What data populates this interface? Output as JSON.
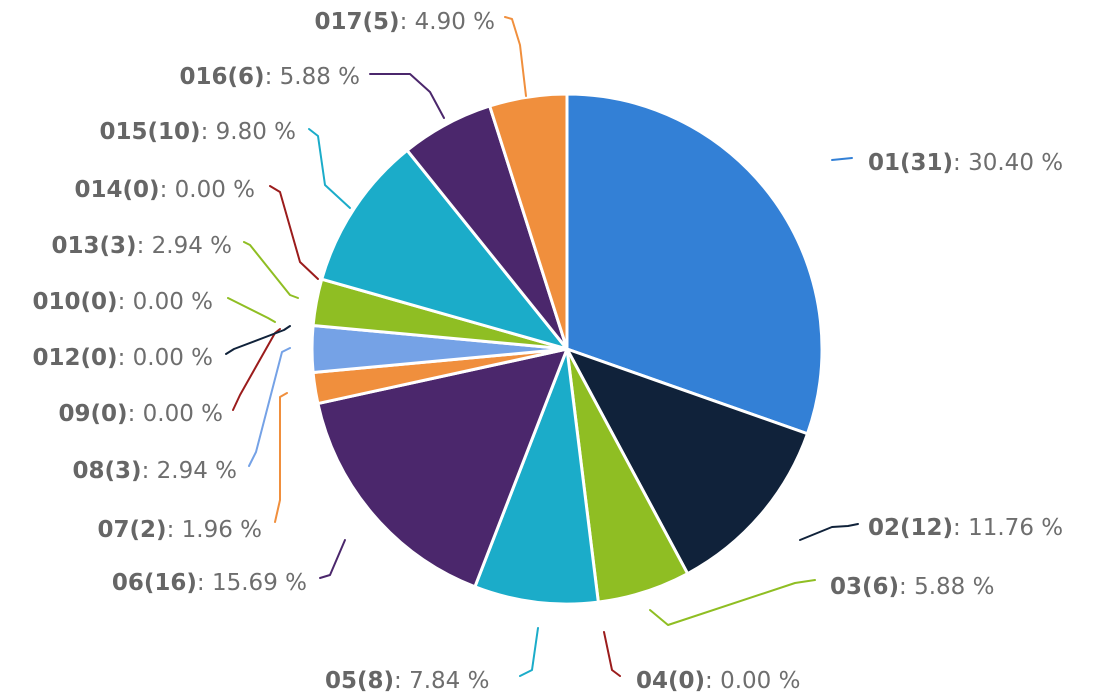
{
  "chart_data": {
    "type": "pie",
    "title": "",
    "value_unit": "%",
    "slices": [
      {
        "name": "01",
        "count": 31,
        "percent": 30.4,
        "color": "#3380d6"
      },
      {
        "name": "02",
        "count": 12,
        "percent": 11.76,
        "color": "#10223a"
      },
      {
        "name": "03",
        "count": 6,
        "percent": 5.88,
        "color": "#8fbe23"
      },
      {
        "name": "04",
        "count": 0,
        "percent": 0.0,
        "color": "#9b1c1c"
      },
      {
        "name": "05",
        "count": 8,
        "percent": 7.84,
        "color": "#1bacc9"
      },
      {
        "name": "06",
        "count": 16,
        "percent": 15.69,
        "color": "#4b276c"
      },
      {
        "name": "07",
        "count": 2,
        "percent": 1.96,
        "color": "#f08f3d"
      },
      {
        "name": "08",
        "count": 3,
        "percent": 2.94,
        "color": "#75a2e6"
      },
      {
        "name": "09",
        "count": 0,
        "percent": 0.0,
        "color": "#9b1c1c"
      },
      {
        "name": "012",
        "count": 0,
        "percent": 0.0,
        "color": "#10223a"
      },
      {
        "name": "010",
        "count": 0,
        "percent": 0.0,
        "color": "#8fbe23"
      },
      {
        "name": "013",
        "count": 3,
        "percent": 2.94,
        "color": "#8fbe23"
      },
      {
        "name": "014",
        "count": 0,
        "percent": 0.0,
        "color": "#9b1c1c"
      },
      {
        "name": "015",
        "count": 10,
        "percent": 9.8,
        "color": "#1bacc9"
      },
      {
        "name": "016",
        "count": 6,
        "percent": 5.88,
        "color": "#4b276c"
      },
      {
        "name": "017",
        "count": 5,
        "percent": 4.9,
        "color": "#f08f3d"
      }
    ]
  }
}
